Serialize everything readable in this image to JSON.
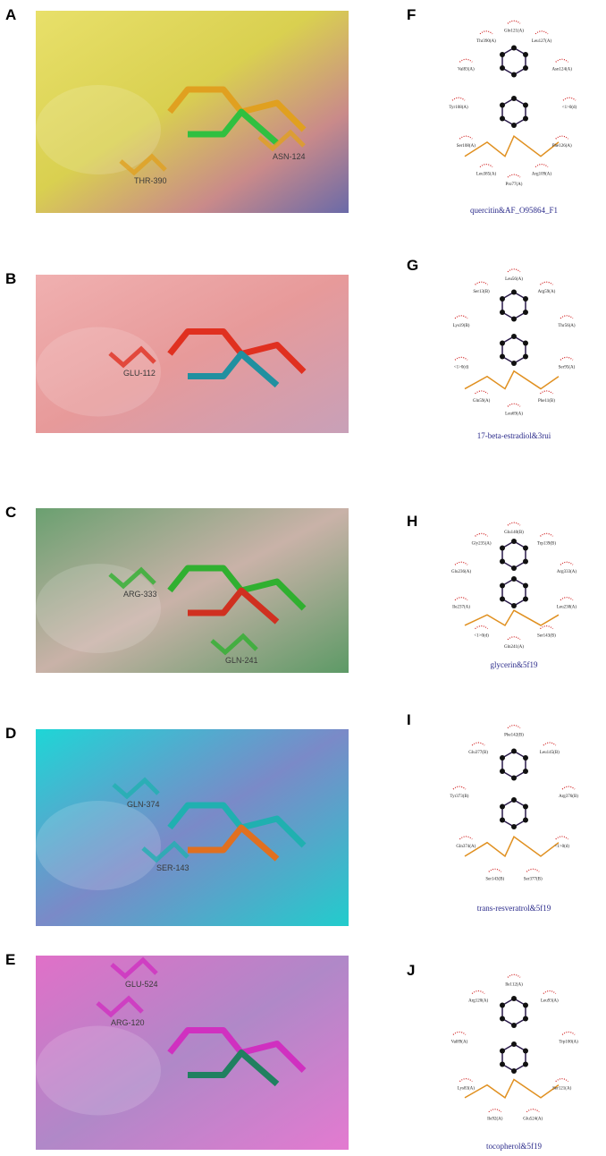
{
  "panels": [
    {
      "letter": "A",
      "residues": [
        "THR-390",
        "ASN-124"
      ]
    },
    {
      "letter": "B",
      "residues": [
        "GLU-112"
      ]
    },
    {
      "letter": "C",
      "residues": [
        "ARG-333",
        "GLN-241"
      ]
    },
    {
      "letter": "D",
      "residues": [
        "GLN-374",
        "SER-143"
      ]
    },
    {
      "letter": "E",
      "residues": [
        "GLU-524",
        "ARG-120"
      ]
    }
  ],
  "diagrams": [
    {
      "letter": "F",
      "caption": "quercitin&AF_O95864_F1",
      "labels": [
        "Gln121(A)",
        "Leu127(A)",
        "Asn124(A)",
        "<1>0(d)",
        "Phe126(A)",
        "Arg109(A)",
        "Pro77(A)",
        "Leu385(A)",
        "Ser108(A)",
        "Tyr108(A)",
        "Val83(A)",
        "Thr390(A)"
      ]
    },
    {
      "letter": "G",
      "caption": "17-beta-estradiol&3rui",
      "labels": [
        "Leu56(A)",
        "Arg59(A)",
        "Thr56(A)",
        "Ser95(A)",
        "Phe11(B)",
        "Leu69(A)",
        "Gln59(A)",
        "<1>0(d)",
        "Lys19(B)",
        "Ser13(B)"
      ]
    },
    {
      "letter": "H",
      "caption": "glycerin&5f19",
      "labels": [
        "Glu140(B)",
        "Trp139(B)",
        "Arg333(A)",
        "Leu238(A)",
        "Ser143(B)",
        "Gln241(A)",
        "<1>0(d)",
        "Ile237(A)",
        "Glu236(A)",
        "Gly235(A)"
      ]
    },
    {
      "letter": "I",
      "caption": "trans-resveratrol&5f19",
      "labels": [
        "Phe142(B)",
        "Leu145(B)",
        "Arg376(B)",
        "<1>0(d)",
        "Ser377(B)",
        "Ser143(B)",
        "Gln374(A)",
        "Tyr373(B)",
        "Glu377(B)"
      ]
    },
    {
      "letter": "J",
      "caption": "tocopherol&5f19",
      "labels": [
        "Ile112(A)",
        "Leu93(A)",
        "Trp100(A)",
        "Ser121(A)",
        "Glu524(A)",
        "Ile92(A)",
        "Lys83(A)",
        "Val89(A)",
        "Arg120(A)"
      ]
    }
  ]
}
